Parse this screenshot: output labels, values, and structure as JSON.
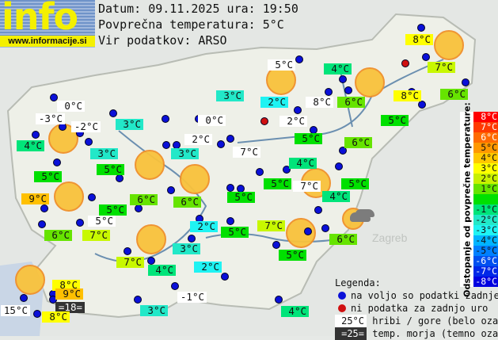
{
  "header": {
    "logo_word": "info",
    "logo_url": "www.informacije.si",
    "date_line": "Datum: 09.11.2025 ura: 19:50",
    "avg_line": "Povprečna temperatura: 5°C",
    "source_line": "Vir podatkov: ARSO"
  },
  "colors": {
    "mountain": "#ffffff",
    "t2": "#1ff3f3",
    "t3": "#22e8c8",
    "t4": "#00e47a",
    "t5": "#00e000",
    "t6": "#66e400",
    "t7": "#c8f800",
    "t8": "#ffff00",
    "t9": "#ffc000",
    "sea": "#333333",
    "dot_ok": "#0a10d8",
    "dot_missing": "#d01010"
  },
  "labels": [
    {
      "text": "0°C",
      "kind": "mountain"
    },
    {
      "text": "-3°C",
      "kind": "mountain"
    },
    {
      "text": "-2°C",
      "kind": "mountain"
    },
    {
      "text": "4°C",
      "kind": "t4"
    },
    {
      "text": "3°C",
      "kind": "t3"
    },
    {
      "text": "3°C",
      "kind": "t3"
    },
    {
      "text": "5°C",
      "kind": "t5"
    },
    {
      "text": "5°C",
      "kind": "t5"
    },
    {
      "text": "9°C",
      "kind": "t9"
    },
    {
      "text": "5°C",
      "kind": "t5"
    },
    {
      "text": "6°C",
      "kind": "t6"
    },
    {
      "text": "7°C",
      "kind": "t7"
    },
    {
      "text": "5°C",
      "kind": "mountain"
    },
    {
      "text": "6°C",
      "kind": "t6"
    },
    {
      "text": "6°C",
      "kind": "t6"
    },
    {
      "text": "3°C",
      "kind": "t3"
    },
    {
      "text": "0°C",
      "kind": "mountain"
    },
    {
      "text": "2°C",
      "kind": "mountain"
    },
    {
      "text": "5°C",
      "kind": "mountain"
    },
    {
      "text": "4°C",
      "kind": "t4"
    },
    {
      "text": "3°C",
      "kind": "t3"
    },
    {
      "text": "2°C",
      "kind": "t2"
    },
    {
      "text": "8°C",
      "kind": "mountain"
    },
    {
      "text": "6°C",
      "kind": "t6"
    },
    {
      "text": "2°C",
      "kind": "mountain"
    },
    {
      "text": "5°C",
      "kind": "t5"
    },
    {
      "text": "8°C",
      "kind": "t8"
    },
    {
      "text": "6°C",
      "kind": "t6"
    },
    {
      "text": "7°C",
      "kind": "t7"
    },
    {
      "text": "8°C",
      "kind": "t8"
    },
    {
      "text": "5°C",
      "kind": "t5"
    },
    {
      "text": "6°C",
      "kind": "t6"
    },
    {
      "text": "7°C",
      "kind": "mountain"
    },
    {
      "text": "4°C",
      "kind": "t4"
    },
    {
      "text": "5°C",
      "kind": "t5"
    },
    {
      "text": "7°C",
      "kind": "mountain"
    },
    {
      "text": "5°C",
      "kind": "t5"
    },
    {
      "text": "4°C",
      "kind": "t4"
    },
    {
      "text": "5°C",
      "kind": "t5"
    },
    {
      "text": "7°C",
      "kind": "t7"
    },
    {
      "text": "6°C",
      "kind": "t6"
    },
    {
      "text": "5°C",
      "kind": "t5"
    },
    {
      "text": "2°C",
      "kind": "t2"
    },
    {
      "text": "5°C",
      "kind": "t5"
    },
    {
      "text": "3°C",
      "kind": "t3"
    },
    {
      "text": "7°C",
      "kind": "t7"
    },
    {
      "text": "4°C",
      "kind": "t4"
    },
    {
      "text": "2°C",
      "kind": "t2"
    },
    {
      "text": "8°C",
      "kind": "t8"
    },
    {
      "text": "9°C",
      "kind": "t9"
    },
    {
      "text": "=18=",
      "kind": "sea"
    },
    {
      "text": "15°C",
      "kind": "mountain"
    },
    {
      "text": "8°C",
      "kind": "t8"
    },
    {
      "text": "-1°C",
      "kind": "mountain"
    },
    {
      "text": "3°C",
      "kind": "t3"
    },
    {
      "text": "4°C",
      "kind": "t4"
    }
  ],
  "missing_stations": 2,
  "weather_icons": [
    "sun",
    "sun",
    "sun",
    "sun",
    "sun",
    "sun",
    "sun",
    "sun",
    "sun",
    "sun",
    "sun",
    "sun-cloud"
  ],
  "scale": {
    "title": "Odstopanje od povprečne temperature:",
    "rows": [
      {
        "text": "8°C",
        "color": "#ff0000",
        "fg": "#fff"
      },
      {
        "text": "7°C",
        "color": "#ff3a00",
        "fg": "#fff"
      },
      {
        "text": "6°C",
        "color": "#ff6a00",
        "fg": "#fff"
      },
      {
        "text": "5°C",
        "color": "#ff9800",
        "fg": "#111"
      },
      {
        "text": "4°C",
        "color": "#ffc800",
        "fg": "#111"
      },
      {
        "text": "3°C",
        "color": "#ffff00",
        "fg": "#111"
      },
      {
        "text": "2°C",
        "color": "#c8f000",
        "fg": "#111"
      },
      {
        "text": "1°C",
        "color": "#66e400",
        "fg": "#111"
      },
      {
        "text": "",
        "color": "#00e000",
        "fg": "#111"
      },
      {
        "text": "-1°C",
        "color": "#00e47a",
        "fg": "#111"
      },
      {
        "text": "-2°C",
        "color": "#22e8c8",
        "fg": "#111"
      },
      {
        "text": "-3°C",
        "color": "#1ff3f3",
        "fg": "#111"
      },
      {
        "text": "-4°C",
        "color": "#00b4ff",
        "fg": "#111"
      },
      {
        "text": "-5°C",
        "color": "#0080ff",
        "fg": "#111"
      },
      {
        "text": "-6°C",
        "color": "#0050f0",
        "fg": "#fff"
      },
      {
        "text": "-7°C",
        "color": "#0028e8",
        "fg": "#fff"
      },
      {
        "text": "-8°C",
        "color": "#0000e0",
        "fg": "#fff"
      }
    ]
  },
  "legend": {
    "title": "Legenda:",
    "ok": "na voljo so podatki zadnje ure",
    "missing": "ni podatka za zadnjo uro",
    "mountain_sample": "25°C",
    "mountain": "hribi / gore (belo ozadje)",
    "sea_sample": "=25=",
    "sea": "temp. morja (temno ozadje)"
  },
  "map_text": {
    "zagreb": "Zagreb"
  }
}
